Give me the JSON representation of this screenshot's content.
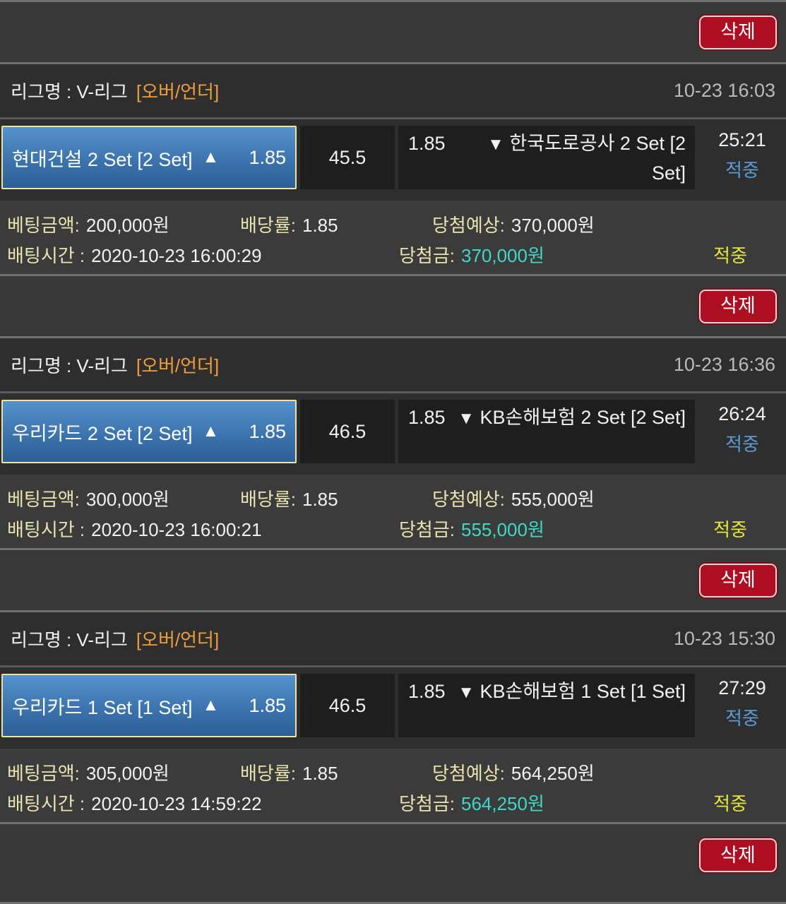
{
  "delete_label": "삭제",
  "labels": {
    "bet_amount": "베팅금액:",
    "odds": "배당률:",
    "expected": "당첨예상:",
    "bet_time": "배팅시간 :",
    "payout": "당첨금:"
  },
  "colors": {
    "page_bg": "#2e2e2e",
    "delete_bar_bg": "#383838",
    "details_bg": "#3b3b3b",
    "cell_bg": "#1e1e1e",
    "divider": "#707070",
    "delete_button_red": "#ad0e22",
    "selected_pick_border": "#f0e3a2",
    "selected_pick_blue": "#3c74ae",
    "league_tag_orange": "#f09d3c",
    "label_khaki": "#e9e3af",
    "payout_cyan": "#3fd8c7",
    "result_yellow": "#e7e43b",
    "status_blue": "#5b9bd5",
    "timestamp_gray": "#bababa"
  },
  "cards": [
    {
      "league_label": "리그명 : V-리그",
      "league_tag": "[오버/언더]",
      "datetime": "10-23 16:03",
      "home_name": "현대건설 2 Set [2 Set]",
      "home_arrow": "▲",
      "home_odds": "1.85",
      "line": "45.5",
      "away_odds": "1.85",
      "away_arrow": "▼",
      "away_name": "한국도로공사 2 Set [2 Set]",
      "score": "25:21",
      "score_status": "적중",
      "bet_amount": "200,000원",
      "odds": "1.85",
      "expected": "370,000원",
      "bet_time": "2020-10-23 16:00:29",
      "payout": "370,000원",
      "result": "적중"
    },
    {
      "league_label": "리그명 : V-리그",
      "league_tag": "[오버/언더]",
      "datetime": "10-23 16:36",
      "home_name": "우리카드 2 Set [2 Set]",
      "home_arrow": "▲",
      "home_odds": "1.85",
      "line": "46.5",
      "away_odds": "1.85",
      "away_arrow": "▼",
      "away_name": "KB손해보험 2 Set [2 Set]",
      "score": "26:24",
      "score_status": "적중",
      "bet_amount": "300,000원",
      "odds": "1.85",
      "expected": "555,000원",
      "bet_time": "2020-10-23 16:00:21",
      "payout": "555,000원",
      "result": "적중"
    },
    {
      "league_label": "리그명 : V-리그",
      "league_tag": "[오버/언더]",
      "datetime": "10-23 15:30",
      "home_name": "우리카드 1 Set [1 Set]",
      "home_arrow": "▲",
      "home_odds": "1.85",
      "line": "46.5",
      "away_odds": "1.85",
      "away_arrow": "▼",
      "away_name": "KB손해보험 1 Set [1 Set]",
      "score": "27:29",
      "score_status": "적중",
      "bet_amount": "305,000원",
      "odds": "1.85",
      "expected": "564,250원",
      "bet_time": "2020-10-23 14:59:22",
      "payout": "564,250원",
      "result": "적중"
    }
  ]
}
